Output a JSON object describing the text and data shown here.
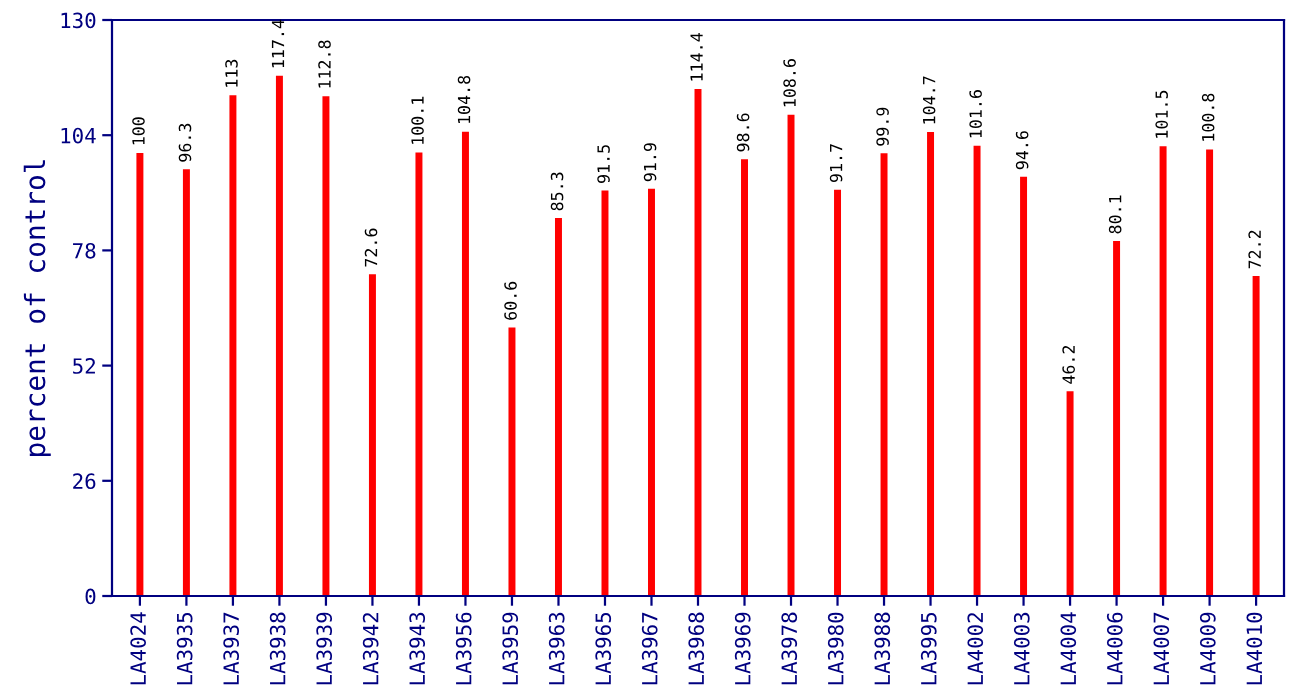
{
  "chart_data": {
    "type": "bar",
    "ylabel": "percent of control",
    "categories": [
      "LA4024",
      "LA3935",
      "LA3937",
      "LA3938",
      "LA3939",
      "LA3942",
      "LA3943",
      "LA3956",
      "LA3959",
      "LA3963",
      "LA3965",
      "LA3967",
      "LA3968",
      "LA3969",
      "LA3978",
      "LA3980",
      "LA3988",
      "LA3995",
      "LA4002",
      "LA4003",
      "LA4004",
      "LA4006",
      "LA4007",
      "LA4009",
      "LA4010"
    ],
    "values": [
      100,
      96.3,
      113,
      117.4,
      112.8,
      72.6,
      100.1,
      104.8,
      60.6,
      85.3,
      91.5,
      91.9,
      114.4,
      98.6,
      108.6,
      91.7,
      99.9,
      104.7,
      101.6,
      94.6,
      46.2,
      80.1,
      101.5,
      100.8,
      72.2
    ],
    "color": "#ff0000",
    "ylim": [
      0,
      130
    ],
    "yticks": [
      0,
      26,
      52,
      78,
      104,
      130
    ],
    "data_labels": true,
    "grid": false,
    "legend": false
  }
}
